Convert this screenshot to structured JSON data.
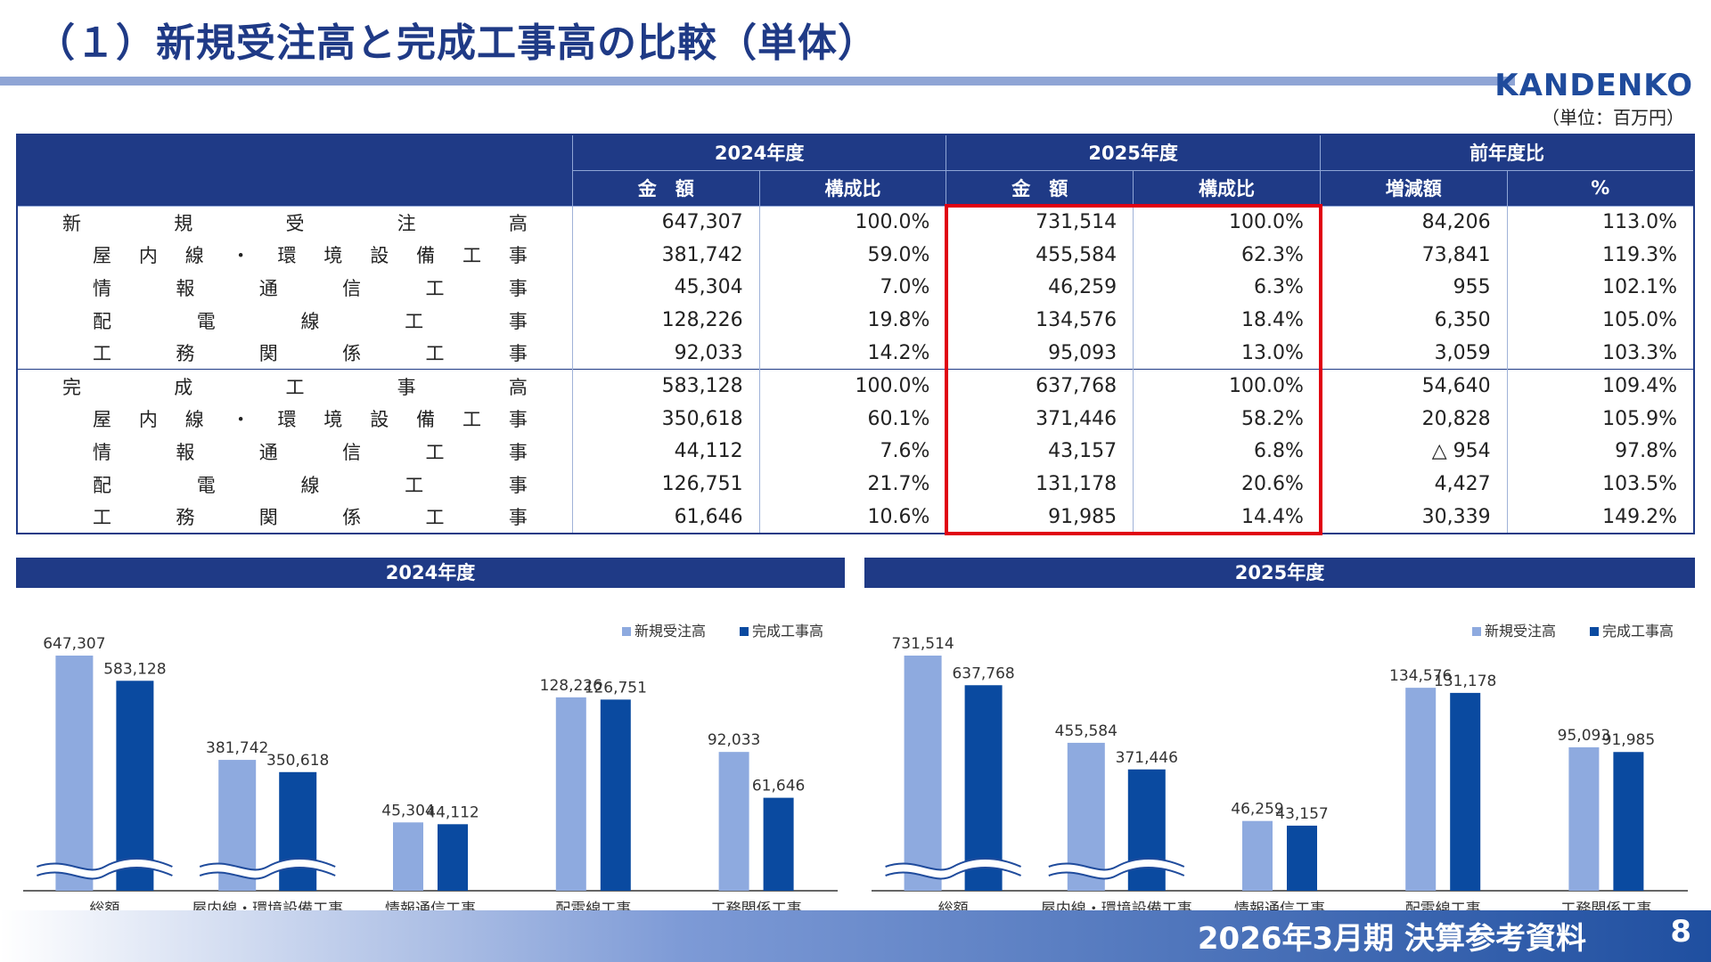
{
  "page": {
    "title": "（１）新規受注高と完成工事高の比較（単体）",
    "logo": "KANDENKO",
    "unit": "（単位：百万円）",
    "footer": "2026年3月期 決算参考資料",
    "page_number": "8"
  },
  "table": {
    "year1": "2024年度",
    "year2": "2025年度",
    "yoy": "前年度比",
    "col_amount": "金　額",
    "col_ratio": "構成比",
    "col_diff": "増減額",
    "col_pct": "%",
    "rows": [
      {
        "label": "新規受注高",
        "level": "main",
        "a1": "647,307",
        "r1": "100.0%",
        "a2": "731,514",
        "r2": "100.0%",
        "d": "84,206",
        "p": "113.0%"
      },
      {
        "label": "屋内線・環境設備工事",
        "level": "sub",
        "a1": "381,742",
        "r1": "59.0%",
        "a2": "455,584",
        "r2": "62.3%",
        "d": "73,841",
        "p": "119.3%"
      },
      {
        "label": "情報通信工事",
        "level": "sub",
        "a1": "45,304",
        "r1": "7.0%",
        "a2": "46,259",
        "r2": "6.3%",
        "d": "955",
        "p": "102.1%"
      },
      {
        "label": "配電線工事",
        "level": "sub",
        "a1": "128,226",
        "r1": "19.8%",
        "a2": "134,576",
        "r2": "18.4%",
        "d": "6,350",
        "p": "105.0%"
      },
      {
        "label": "工務関係工事",
        "level": "sub",
        "a1": "92,033",
        "r1": "14.2%",
        "a2": "95,093",
        "r2": "13.0%",
        "d": "3,059",
        "p": "103.3%"
      },
      {
        "label": "完成工事高",
        "level": "main",
        "a1": "583,128",
        "r1": "100.0%",
        "a2": "637,768",
        "r2": "100.0%",
        "d": "54,640",
        "p": "109.4%"
      },
      {
        "label": "屋内線・環境設備工事",
        "level": "sub",
        "a1": "350,618",
        "r1": "60.1%",
        "a2": "371,446",
        "r2": "58.2%",
        "d": "20,828",
        "p": "105.9%"
      },
      {
        "label": "情報通信工事",
        "level": "sub",
        "a1": "44,112",
        "r1": "7.6%",
        "a2": "43,157",
        "r2": "6.8%",
        "d": "△ 954",
        "p": "97.8%"
      },
      {
        "label": "配電線工事",
        "level": "sub",
        "a1": "126,751",
        "r1": "21.7%",
        "a2": "131,178",
        "r2": "20.6%",
        "d": "4,427",
        "p": "103.5%"
      },
      {
        "label": "工務関係工事",
        "level": "sub",
        "a1": "61,646",
        "r1": "10.6%",
        "a2": "91,985",
        "r2": "14.4%",
        "d": "30,339",
        "p": "149.2%"
      }
    ]
  },
  "colors": {
    "orders": "#8eaadf",
    "completed": "#0a4aa0",
    "header": "#1f3a86",
    "highlight": "#e00012"
  },
  "chart_data": [
    {
      "type": "bar",
      "title": "2024年度",
      "categories": [
        "総額",
        "屋内線・環境設備工事",
        "情報通信工事",
        "配電線工事",
        "工務関係工事"
      ],
      "series": [
        {
          "name": "新規受注高",
          "values": [
            647307,
            381742,
            45304,
            128226,
            92033
          ]
        },
        {
          "name": "完成工事高",
          "values": [
            583128,
            350618,
            44112,
            126751,
            61646
          ]
        }
      ],
      "value_labels": [
        [
          "647,307",
          "381,742",
          "45,304",
          "128,226",
          "92,033"
        ],
        [
          "583,128",
          "350,618",
          "44,112",
          "126,751",
          "61,646"
        ]
      ],
      "axis_break_categories": [
        0,
        1
      ],
      "legend": "top-right",
      "grid": false
    },
    {
      "type": "bar",
      "title": "2025年度",
      "categories": [
        "総額",
        "屋内線・環境設備工事",
        "情報通信工事",
        "配電線工事",
        "工務関係工事"
      ],
      "series": [
        {
          "name": "新規受注高",
          "values": [
            731514,
            455584,
            46259,
            134576,
            95093
          ]
        },
        {
          "name": "完成工事高",
          "values": [
            637768,
            371446,
            43157,
            131178,
            91985
          ]
        }
      ],
      "value_labels": [
        [
          "731,514",
          "455,584",
          "46,259",
          "134,576",
          "95,093"
        ],
        [
          "637,768",
          "371,446",
          "43,157",
          "131,178",
          "91,985"
        ]
      ],
      "axis_break_categories": [
        0,
        1
      ],
      "legend": "top-right",
      "grid": false
    }
  ]
}
